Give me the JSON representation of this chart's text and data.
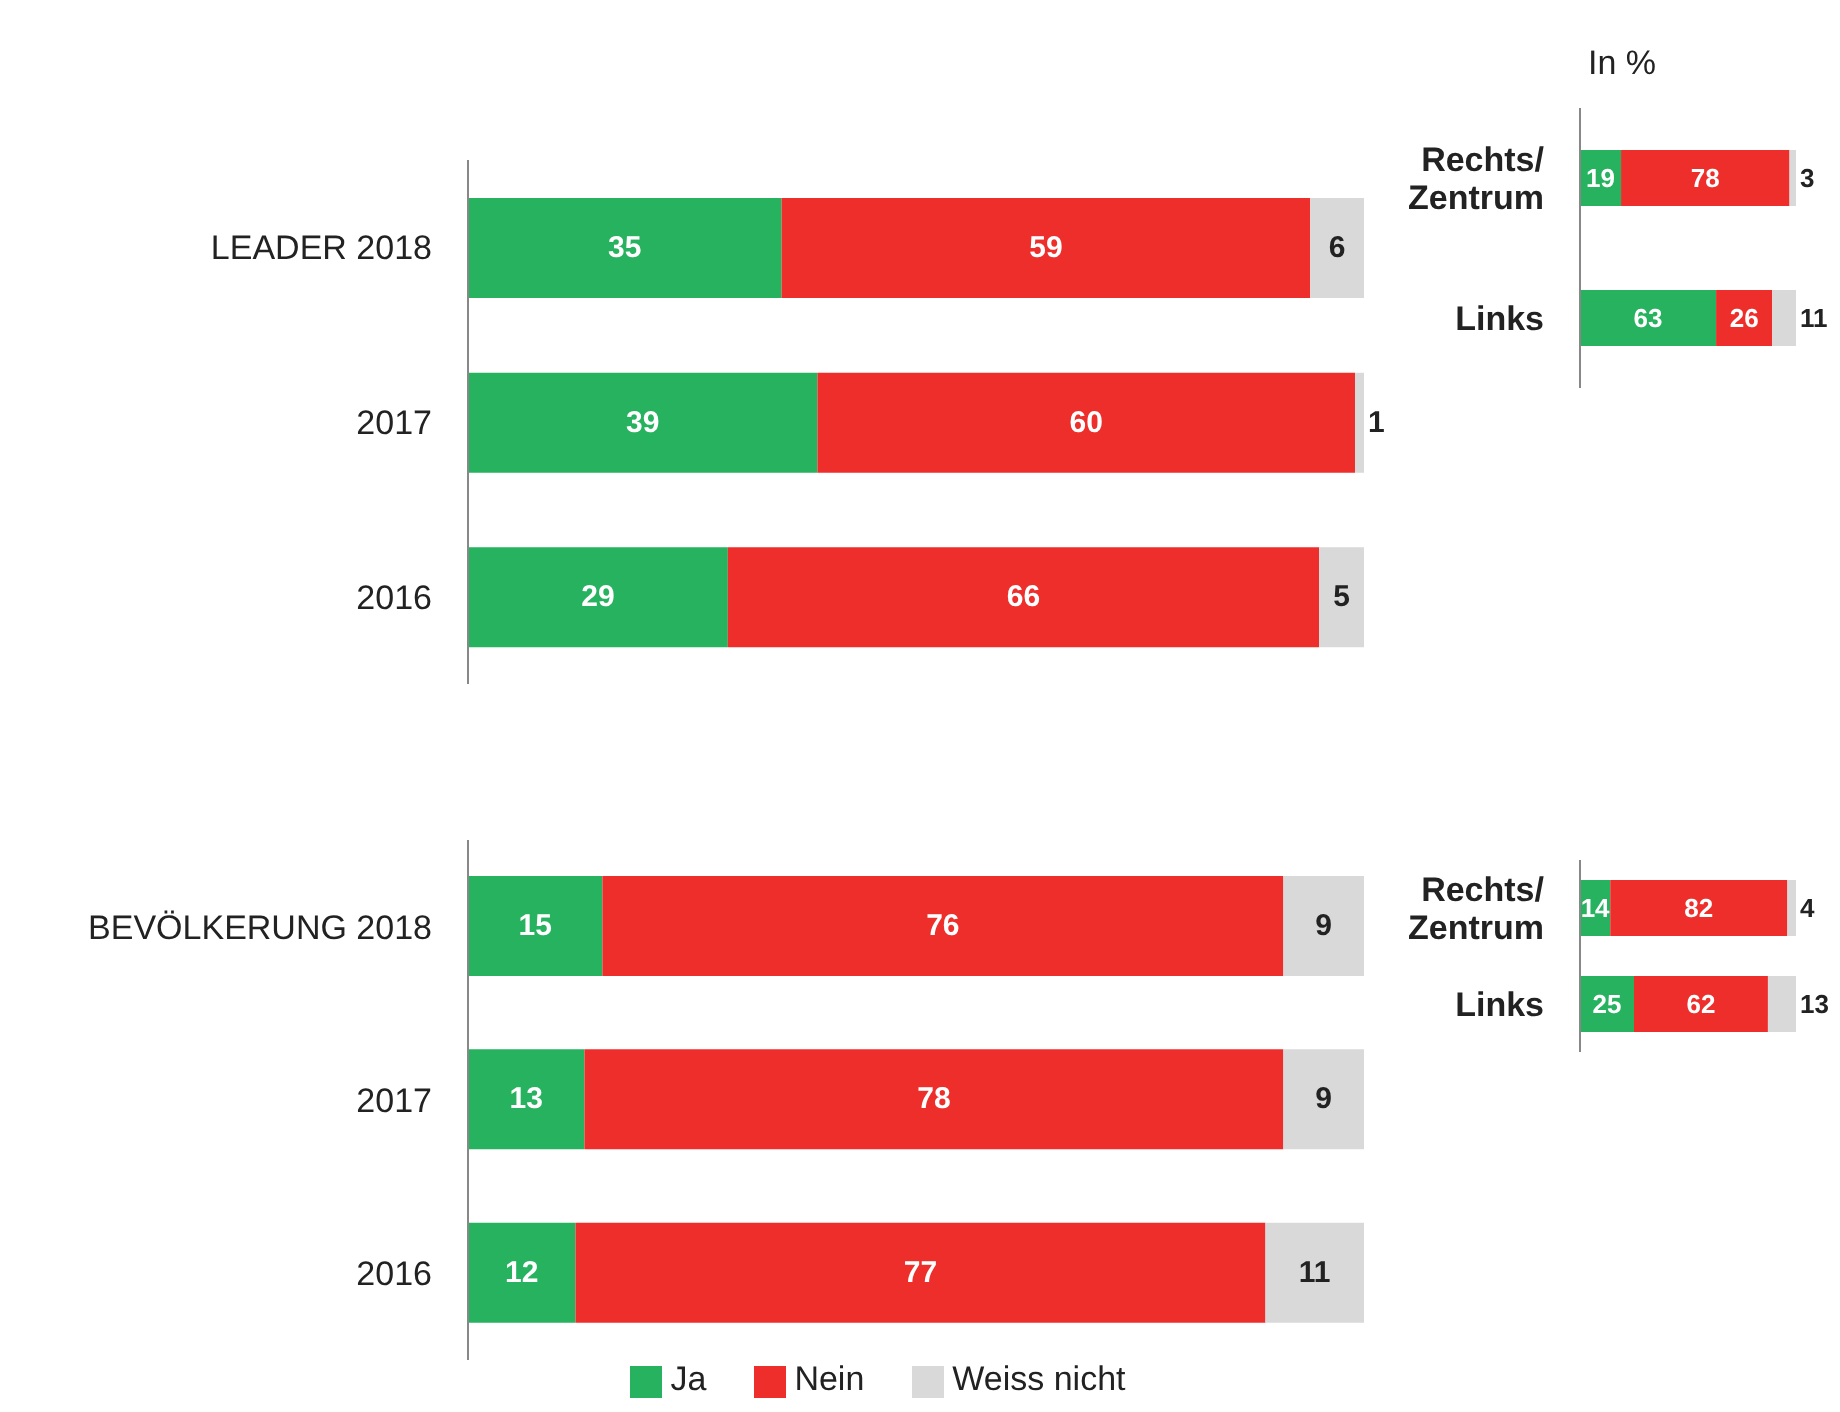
{
  "chart_data": [
    {
      "type": "bar",
      "orientation": "horizontal",
      "stacked": true,
      "data_labels": true,
      "categories": [
        "LEADER 2018",
        "2017",
        "2016"
      ],
      "series": [
        {
          "color": "#27b25f",
          "values": [
            35,
            39,
            29
          ]
        },
        {
          "color": "#ee2e2b",
          "values": [
            59,
            60,
            66
          ]
        },
        {
          "color": "#d9d9d9",
          "values": [
            6,
            1,
            5
          ]
        }
      ]
    },
    {
      "type": "bar",
      "orientation": "horizontal",
      "stacked": true,
      "data_labels": true,
      "subtitle": "In %",
      "categories": [
        "Rechts/ Zentrum",
        "Links"
      ],
      "series": [
        {
          "color": "#27b25f",
          "values": [
            19,
            63
          ]
        },
        {
          "color": "#ee2e2b",
          "values": [
            78,
            26
          ]
        },
        {
          "color": "#d9d9d9",
          "values": [
            3,
            11
          ]
        }
      ]
    },
    {
      "type": "bar",
      "orientation": "horizontal",
      "stacked": true,
      "data_labels": true,
      "legend": "bottom",
      "categories": [
        "BEVÖLKERUNG 2018",
        "2017",
        "2016"
      ],
      "series": [
        {
          "name": "Ja",
          "color": "#27b25f",
          "values": [
            15,
            13,
            12
          ]
        },
        {
          "name": "Nein",
          "color": "#ee2e2b",
          "values": [
            76,
            78,
            77
          ]
        },
        {
          "name": "Weiss nicht",
          "color": "#d9d9d9",
          "values": [
            9,
            9,
            11
          ]
        }
      ]
    },
    {
      "type": "bar",
      "orientation": "horizontal",
      "stacked": true,
      "data_labels": true,
      "categories": [
        "Rechts/ Zentrum",
        "Links"
      ],
      "series": [
        {
          "color": "#27b25f",
          "values": [
            14,
            25
          ]
        },
        {
          "color": "#ee2e2b",
          "values": [
            82,
            62
          ]
        },
        {
          "color": "#d9d9d9",
          "values": [
            4,
            13
          ]
        }
      ]
    }
  ]
}
